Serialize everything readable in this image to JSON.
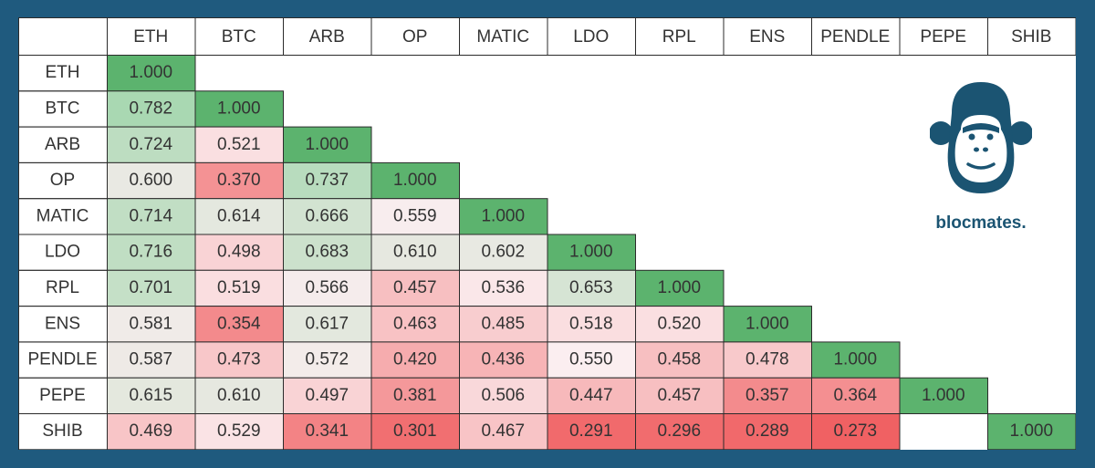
{
  "brand": {
    "name": "blocmates.",
    "color": "#1b5472"
  },
  "colors": {
    "background": "#1f5a7e",
    "high": "#5cb36e",
    "mid": "#fbeef0",
    "low": "#f05f61",
    "border": "#2b2b2b"
  },
  "chart_data": {
    "type": "heatmap",
    "title": "",
    "columns": [
      "ETH",
      "BTC",
      "ARB",
      "OP",
      "MATIC",
      "LDO",
      "RPL",
      "ENS",
      "PENDLE",
      "PEPE",
      "SHIB"
    ],
    "rows": [
      "ETH",
      "BTC",
      "ARB",
      "OP",
      "MATIC",
      "LDO",
      "RPL",
      "ENS",
      "PENDLE",
      "PEPE",
      "SHIB"
    ],
    "values": [
      [
        "1.000"
      ],
      [
        "0.782",
        "1.000"
      ],
      [
        "0.724",
        "0.521",
        "1.000"
      ],
      [
        "0.600",
        "0.370",
        "0.737",
        "1.000"
      ],
      [
        "0.714",
        "0.614",
        "0.666",
        "0.559",
        "1.000"
      ],
      [
        "0.716",
        "0.498",
        "0.683",
        "0.610",
        "0.602",
        "1.000"
      ],
      [
        "0.701",
        "0.519",
        "0.566",
        "0.457",
        "0.536",
        "0.653",
        "1.000"
      ],
      [
        "0.581",
        "0.354",
        "0.617",
        "0.463",
        "0.485",
        "0.518",
        "0.520",
        "1.000"
      ],
      [
        "0.587",
        "0.473",
        "0.572",
        "0.420",
        "0.436",
        "0.550",
        "0.458",
        "0.478",
        "1.000"
      ],
      [
        "0.615",
        "0.610",
        "0.497",
        "0.381",
        "0.506",
        "0.447",
        "0.457",
        "0.357",
        "0.364",
        "1.000"
      ],
      [
        "0.469",
        "0.529",
        "0.341",
        "0.301",
        "0.467",
        "0.291",
        "0.296",
        "0.289",
        "0.273",
        "",
        "1.000"
      ]
    ],
    "color_scale": {
      "low_value": 0.27,
      "mid_value": 0.55,
      "high_value": 0.78,
      "diagonal_value": 1.0
    },
    "grid": true,
    "legend": "none"
  }
}
